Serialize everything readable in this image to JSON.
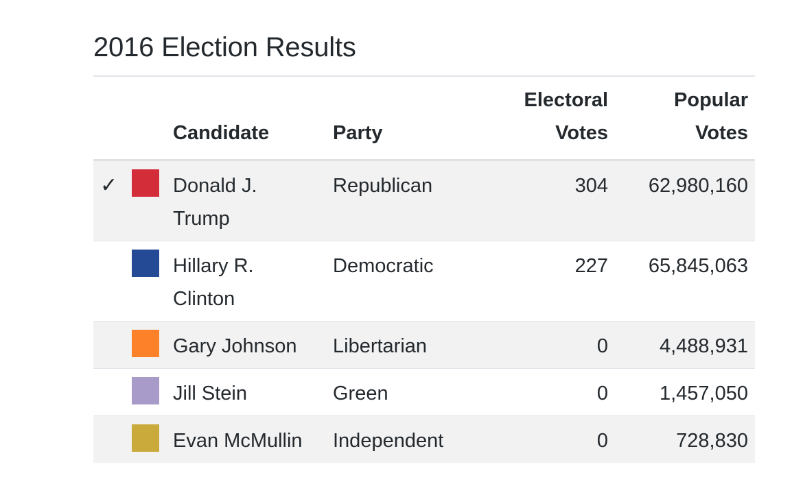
{
  "title": "2016 Election Results",
  "headers": {
    "candidate": "Candidate",
    "party": "Party",
    "electoral_line1": "Electoral",
    "electoral_line2": "Votes",
    "popular_line1": "Popular",
    "popular_line2": "Votes"
  },
  "check_glyph": "✓",
  "rows": [
    {
      "winner": true,
      "color": "#d42d3a",
      "candidate_line1": "Donald J.",
      "candidate_line2": "Trump",
      "party": "Republican",
      "electoral": "304",
      "popular": "62,980,160"
    },
    {
      "winner": false,
      "color": "#244a96",
      "candidate_line1": "Hillary R.",
      "candidate_line2": "Clinton",
      "party": "Democratic",
      "electoral": "227",
      "popular": "65,845,063"
    },
    {
      "winner": false,
      "color": "#fd8128",
      "candidate_line1": "Gary Johnson",
      "candidate_line2": "",
      "party": "Libertarian",
      "electoral": "0",
      "popular": "4,488,931"
    },
    {
      "winner": false,
      "color": "#a89bca",
      "candidate_line1": "Jill Stein",
      "candidate_line2": "",
      "party": "Green",
      "electoral": "0",
      "popular": "1,457,050"
    },
    {
      "winner": false,
      "color": "#c9aa3a",
      "candidate_line1": "Evan McMullin",
      "candidate_line2": "",
      "party": "Independent",
      "electoral": "0",
      "popular": "728,830"
    }
  ]
}
